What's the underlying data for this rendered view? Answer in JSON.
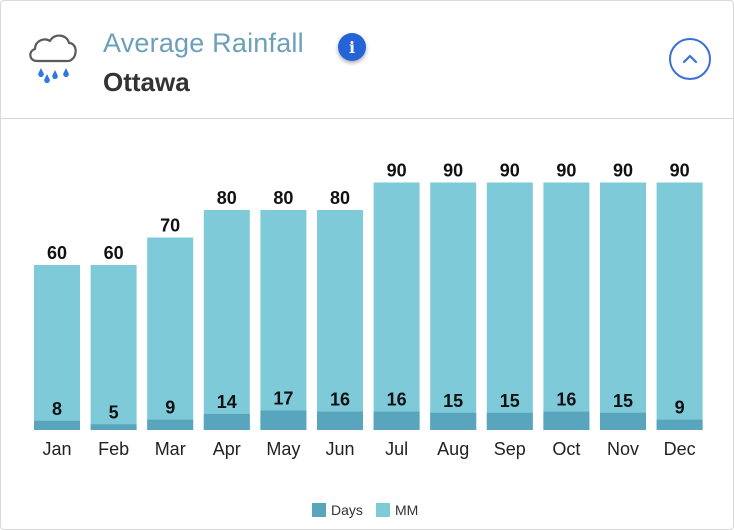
{
  "header": {
    "title": "Average Rainfall",
    "subtitle": "Ottawa",
    "icon": "rain-cloud-icon",
    "info_icon": "info-icon",
    "collapse_icon": "chevron-up-icon",
    "info_glyph": "i"
  },
  "colors": {
    "title": "#6c9fb8",
    "days": "#5aa5be",
    "mm": "#7ecad9",
    "info": "#2563d9",
    "rain_drop": "#2f79e0"
  },
  "chart_data": {
    "type": "bar",
    "title": "Average Rainfall",
    "categories": [
      "Jan",
      "Feb",
      "Mar",
      "Apr",
      "May",
      "Jun",
      "Jul",
      "Aug",
      "Sep",
      "Oct",
      "Nov",
      "Dec"
    ],
    "series": [
      {
        "name": "Days",
        "values": [
          8,
          5,
          9,
          14,
          17,
          16,
          16,
          15,
          15,
          16,
          15,
          9
        ]
      },
      {
        "name": "MM",
        "values": [
          60,
          60,
          70,
          80,
          80,
          80,
          90,
          90,
          90,
          90,
          90,
          90
        ]
      }
    ],
    "legend": [
      "Days",
      "MM"
    ],
    "legend_position": "bottom-center"
  }
}
